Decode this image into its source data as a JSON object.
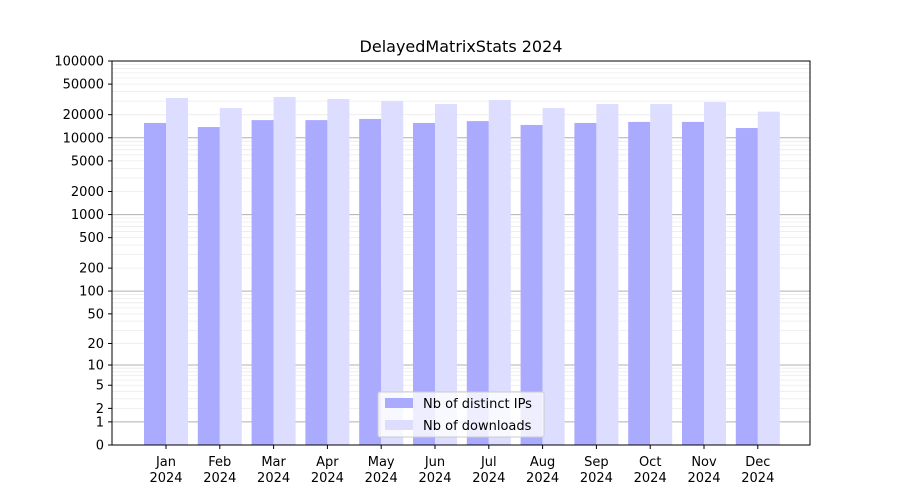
{
  "chart_data": {
    "type": "bar",
    "title": "DelayedMatrixStats 2024",
    "xlabel": "",
    "ylabel": "",
    "yscale": "log10(1+y)",
    "ylim": [
      0,
      100000
    ],
    "yticks": [
      0,
      1,
      2,
      5,
      10,
      20,
      50,
      100,
      200,
      500,
      1000,
      2000,
      5000,
      10000,
      20000,
      50000,
      100000
    ],
    "grid": true,
    "legend_position": "bottom-center",
    "categories": [
      [
        "Jan",
        "2024"
      ],
      [
        "Feb",
        "2024"
      ],
      [
        "Mar",
        "2024"
      ],
      [
        "Apr",
        "2024"
      ],
      [
        "May",
        "2024"
      ],
      [
        "Jun",
        "2024"
      ],
      [
        "Jul",
        "2024"
      ],
      [
        "Aug",
        "2024"
      ],
      [
        "Sep",
        "2024"
      ],
      [
        "Oct",
        "2024"
      ],
      [
        "Nov",
        "2024"
      ],
      [
        "Dec",
        "2024"
      ]
    ],
    "series": [
      {
        "name": "Nb of distinct IPs",
        "color": "#aaaaff",
        "values": [
          15600,
          13800,
          17000,
          17000,
          17600,
          15600,
          16500,
          14700,
          15600,
          16100,
          16100,
          13400
        ]
      },
      {
        "name": "Nb of downloads",
        "color": "#ddddff",
        "values": [
          33000,
          24400,
          34000,
          32000,
          30100,
          27500,
          31000,
          24400,
          27500,
          27500,
          29200,
          21900
        ]
      }
    ]
  }
}
